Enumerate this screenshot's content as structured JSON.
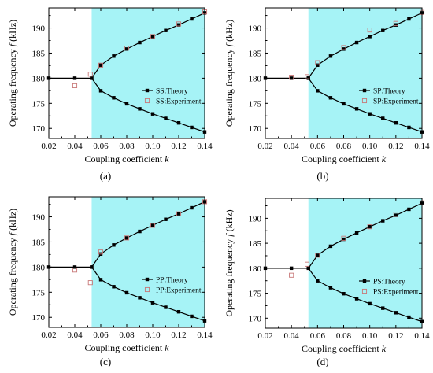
{
  "figure": {
    "shading_color": "#a6f3f6",
    "line_color": "#000000",
    "experiment_marker_color": "#c87878"
  },
  "chart_data": [
    {
      "id": "a",
      "panel_label": "(a)",
      "type": "line",
      "xlabel": "Coupling coefficient",
      "xlabel_var": "k",
      "ylabel": "Operating frequency",
      "ylabel_var": "f",
      "ylabel_unit": "(kHz)",
      "xlim": [
        0.02,
        0.14
      ],
      "ylim": [
        168,
        194
      ],
      "xticks": [
        "0.02",
        "0.04",
        "0.06",
        "0.08",
        "0.10",
        "0.12",
        "0.14"
      ],
      "yticks": [
        "170",
        "175",
        "180",
        "185",
        "190"
      ],
      "shaded_region_x": [
        0.053,
        0.14
      ],
      "legend_position": "right-middle",
      "series": [
        {
          "name": "SS:Theory",
          "role": "theory",
          "branches": [
            [
              [
                0.02,
                180.0
              ],
              [
                0.04,
                180.0
              ],
              [
                0.053,
                180.0
              ],
              [
                0.06,
                182.6
              ],
              [
                0.07,
                184.4
              ],
              [
                0.08,
                185.8
              ],
              [
                0.09,
                187.1
              ],
              [
                0.1,
                188.3
              ],
              [
                0.11,
                189.5
              ],
              [
                0.12,
                190.6
              ],
              [
                0.13,
                191.8
              ],
              [
                0.14,
                193.0
              ]
            ],
            [
              [
                0.053,
                180.0
              ],
              [
                0.06,
                177.5
              ],
              [
                0.07,
                176.1
              ],
              [
                0.08,
                174.9
              ],
              [
                0.09,
                173.9
              ],
              [
                0.1,
                172.9
              ],
              [
                0.11,
                172.0
              ],
              [
                0.12,
                171.1
              ],
              [
                0.13,
                170.2
              ],
              [
                0.14,
                169.3
              ]
            ]
          ]
        },
        {
          "name": "SS:Experiment",
          "role": "experiment",
          "points": [
            [
              0.04,
              178.5
            ],
            [
              0.052,
              180.8
            ],
            [
              0.06,
              182.6
            ],
            [
              0.08,
              186.0
            ],
            [
              0.1,
              188.3
            ],
            [
              0.12,
              190.8
            ],
            [
              0.14,
              193.2
            ]
          ]
        }
      ]
    },
    {
      "id": "b",
      "panel_label": "(b)",
      "type": "line",
      "xlabel": "Coupling coefficient",
      "xlabel_var": "k",
      "ylabel": "Operating frequency",
      "ylabel_var": "f",
      "ylabel_unit": "(kHz)",
      "xlim": [
        0.02,
        0.14
      ],
      "ylim": [
        168,
        194
      ],
      "xticks": [
        "0.02",
        "0.04",
        "0.06",
        "0.08",
        "0.10",
        "0.12",
        "0.14"
      ],
      "yticks": [
        "170",
        "175",
        "180",
        "185",
        "190"
      ],
      "shaded_region_x": [
        0.053,
        0.14
      ],
      "legend_position": "right-middle",
      "series": [
        {
          "name": "SP:Theory",
          "role": "theory",
          "branches": [
            [
              [
                0.02,
                180.0
              ],
              [
                0.04,
                180.0
              ],
              [
                0.053,
                180.0
              ],
              [
                0.06,
                182.6
              ],
              [
                0.07,
                184.4
              ],
              [
                0.08,
                185.8
              ],
              [
                0.09,
                187.1
              ],
              [
                0.1,
                188.3
              ],
              [
                0.11,
                189.5
              ],
              [
                0.12,
                190.6
              ],
              [
                0.13,
                191.8
              ],
              [
                0.14,
                193.0
              ]
            ],
            [
              [
                0.053,
                180.0
              ],
              [
                0.06,
                177.5
              ],
              [
                0.07,
                176.1
              ],
              [
                0.08,
                174.9
              ],
              [
                0.09,
                173.9
              ],
              [
                0.1,
                172.9
              ],
              [
                0.11,
                172.0
              ],
              [
                0.12,
                171.1
              ],
              [
                0.13,
                170.2
              ],
              [
                0.14,
                169.3
              ]
            ]
          ]
        },
        {
          "name": "SP:Experiment",
          "role": "experiment",
          "points": [
            [
              0.04,
              180.2
            ],
            [
              0.052,
              180.3
            ],
            [
              0.06,
              183.1
            ],
            [
              0.08,
              186.1
            ],
            [
              0.1,
              189.6
            ],
            [
              0.12,
              190.9
            ],
            [
              0.14,
              193.1
            ]
          ]
        }
      ]
    },
    {
      "id": "c",
      "panel_label": "(c)",
      "type": "line",
      "xlabel": "Coupling coefficient",
      "xlabel_var": "k",
      "ylabel": "Operating frequency",
      "ylabel_var": "f",
      "ylabel_unit": "(kHz)",
      "xlim": [
        0.02,
        0.14
      ],
      "ylim": [
        168,
        194
      ],
      "xticks": [
        "0.02",
        "0.04",
        "0.06",
        "0.08",
        "0.10",
        "0.12",
        "0.14"
      ],
      "yticks": [
        "170",
        "175",
        "180",
        "185",
        "190"
      ],
      "shaded_region_x": [
        0.053,
        0.14
      ],
      "legend_position": "right-middle",
      "series": [
        {
          "name": "PP:Theory",
          "role": "theory",
          "branches": [
            [
              [
                0.02,
                180.0
              ],
              [
                0.04,
                180.0
              ],
              [
                0.053,
                180.0
              ],
              [
                0.06,
                182.6
              ],
              [
                0.07,
                184.4
              ],
              [
                0.08,
                185.8
              ],
              [
                0.09,
                187.1
              ],
              [
                0.1,
                188.3
              ],
              [
                0.11,
                189.5
              ],
              [
                0.12,
                190.6
              ],
              [
                0.13,
                191.8
              ],
              [
                0.14,
                193.0
              ]
            ],
            [
              [
                0.053,
                180.0
              ],
              [
                0.06,
                177.5
              ],
              [
                0.07,
                176.1
              ],
              [
                0.08,
                174.9
              ],
              [
                0.09,
                173.9
              ],
              [
                0.1,
                172.9
              ],
              [
                0.11,
                172.0
              ],
              [
                0.12,
                171.1
              ],
              [
                0.13,
                170.2
              ],
              [
                0.14,
                169.3
              ]
            ]
          ]
        },
        {
          "name": "PP:Experiment",
          "role": "experiment",
          "points": [
            [
              0.04,
              179.4
            ],
            [
              0.052,
              176.9
            ],
            [
              0.06,
              183.0
            ],
            [
              0.08,
              185.8
            ],
            [
              0.1,
              188.3
            ],
            [
              0.12,
              190.6
            ],
            [
              0.14,
              193.0
            ]
          ]
        }
      ]
    },
    {
      "id": "d",
      "panel_label": "(d)",
      "type": "line",
      "xlabel": "Coupling coefficient",
      "xlabel_var": "k",
      "ylabel": "Operating frequency",
      "ylabel_var": "f",
      "ylabel_unit": "(kHz)",
      "xlim": [
        0.02,
        0.14
      ],
      "ylim": [
        168,
        194
      ],
      "xticks": [
        "0.02",
        "0.04",
        "0.06",
        "0.08",
        "0.10",
        "0.12",
        "0.14"
      ],
      "yticks": [
        "170",
        "175",
        "180",
        "185",
        "190"
      ],
      "shaded_region_x": [
        0.053,
        0.14
      ],
      "legend_position": "right-middle",
      "series": [
        {
          "name": "PS:Theory",
          "role": "theory",
          "branches": [
            [
              [
                0.02,
                180.0
              ],
              [
                0.04,
                180.0
              ],
              [
                0.053,
                180.0
              ],
              [
                0.06,
                182.6
              ],
              [
                0.07,
                184.4
              ],
              [
                0.08,
                185.8
              ],
              [
                0.09,
                187.1
              ],
              [
                0.1,
                188.3
              ],
              [
                0.11,
                189.5
              ],
              [
                0.12,
                190.6
              ],
              [
                0.13,
                191.8
              ],
              [
                0.14,
                193.0
              ]
            ],
            [
              [
                0.053,
                180.0
              ],
              [
                0.06,
                177.5
              ],
              [
                0.07,
                176.1
              ],
              [
                0.08,
                174.9
              ],
              [
                0.09,
                173.9
              ],
              [
                0.1,
                172.9
              ],
              [
                0.11,
                172.0
              ],
              [
                0.12,
                171.1
              ],
              [
                0.13,
                170.2
              ],
              [
                0.14,
                169.3
              ]
            ]
          ]
        },
        {
          "name": "PS:Experiment",
          "role": "experiment",
          "points": [
            [
              0.04,
              178.6
            ],
            [
              0.052,
              180.8
            ],
            [
              0.06,
              182.6
            ],
            [
              0.08,
              186.0
            ],
            [
              0.1,
              188.3
            ],
            [
              0.12,
              190.8
            ],
            [
              0.14,
              193.1
            ]
          ]
        }
      ]
    }
  ]
}
